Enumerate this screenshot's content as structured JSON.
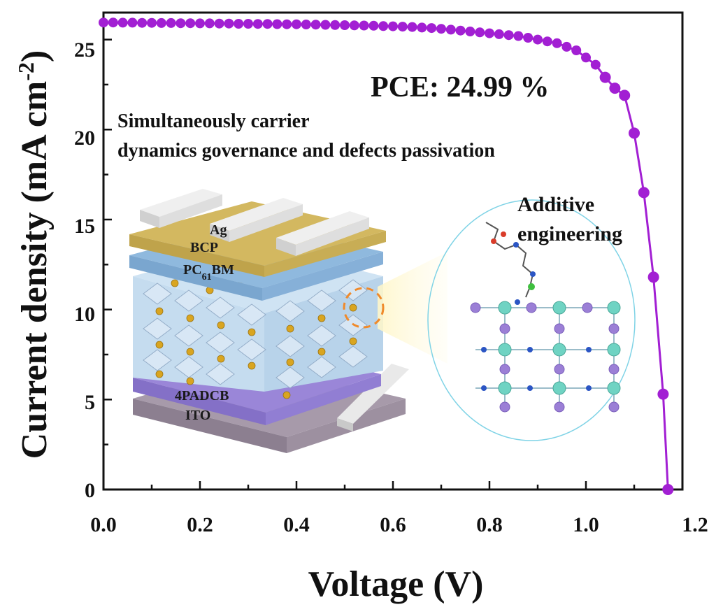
{
  "colors": {
    "series": "#a21fd3",
    "pce": "#f08a2b",
    "axis": "#111111"
  },
  "chart_data": {
    "type": "line",
    "xlabel": "Voltage (V)",
    "ylabel": "Current density (mA cm",
    "ylabel_sup": "-2",
    "ylabel_close": ")",
    "xlim": [
      0.0,
      1.2
    ],
    "ylim": [
      0,
      26.5
    ],
    "x_ticks": [
      "0.0",
      "0.2",
      "0.4",
      "0.6",
      "0.8",
      "1.0",
      "1.2"
    ],
    "y_ticks": [
      "0",
      "5",
      "10",
      "15",
      "20",
      "25"
    ],
    "grid": false,
    "series": [
      {
        "marker": "circle",
        "x": [
          0.0,
          0.02,
          0.04,
          0.06,
          0.08,
          0.1,
          0.12,
          0.14,
          0.16,
          0.18,
          0.2,
          0.22,
          0.24,
          0.26,
          0.28,
          0.3,
          0.32,
          0.34,
          0.36,
          0.38,
          0.4,
          0.42,
          0.44,
          0.46,
          0.48,
          0.5,
          0.52,
          0.54,
          0.56,
          0.58,
          0.6,
          0.62,
          0.64,
          0.66,
          0.68,
          0.7,
          0.72,
          0.74,
          0.76,
          0.78,
          0.8,
          0.82,
          0.84,
          0.86,
          0.88,
          0.9,
          0.92,
          0.94,
          0.96,
          0.98,
          1.0,
          1.02,
          1.04,
          1.06,
          1.08,
          1.1,
          1.12,
          1.14,
          1.16,
          1.17
        ],
        "y": [
          25.95,
          25.95,
          25.94,
          25.94,
          25.93,
          25.93,
          25.92,
          25.92,
          25.91,
          25.91,
          25.9,
          25.9,
          25.89,
          25.89,
          25.88,
          25.88,
          25.87,
          25.87,
          25.86,
          25.85,
          25.85,
          25.84,
          25.83,
          25.82,
          25.81,
          25.8,
          25.79,
          25.78,
          25.77,
          25.75,
          25.74,
          25.72,
          25.7,
          25.67,
          25.64,
          25.6,
          25.55,
          25.5,
          25.45,
          25.4,
          25.35,
          25.3,
          25.25,
          25.2,
          25.1,
          25.0,
          24.9,
          24.8,
          24.6,
          24.4,
          24.0,
          23.6,
          22.9,
          22.3,
          21.9,
          19.8,
          16.5,
          11.8,
          5.3,
          0.0
        ]
      }
    ],
    "annotations": {
      "pce": "PCE: 24.99 %",
      "headline_1": "Simultaneously carrier",
      "headline_2": "dynamics governance and defects passivation",
      "additive_1": "Additive",
      "additive_2": "engineering",
      "layers": {
        "ag": "Ag",
        "bcp": "BCP",
        "pcbm_pre": "PC",
        "pcbm_sub": "61",
        "pcbm_post": "BM",
        "htl": "4PADCB",
        "ito": "ITO"
      }
    }
  }
}
